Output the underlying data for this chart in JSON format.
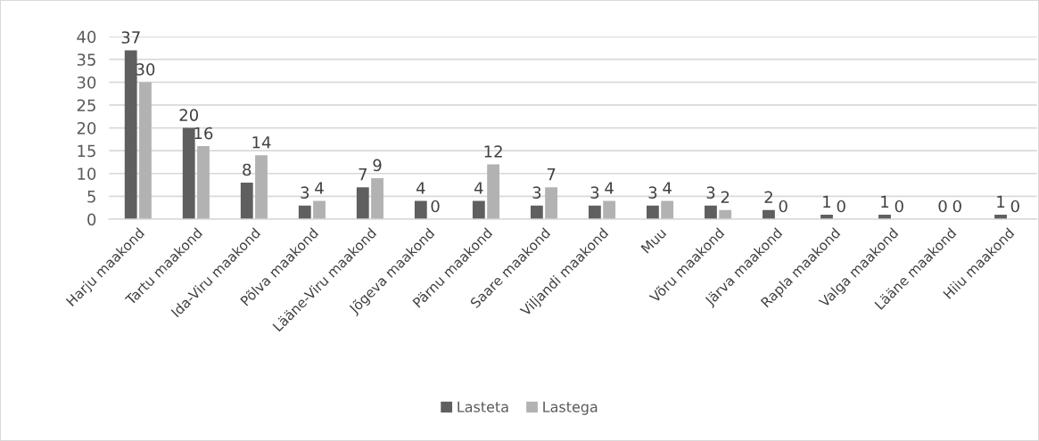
{
  "chart_data": {
    "type": "bar",
    "categories": [
      "Harju maakond",
      "Tartu maakond",
      "Ida-Viru maakond",
      "Põlva maakond",
      "Lääne-Viru maakond",
      "Jõgeva maakond",
      "Pärnu maakond",
      "Saare maakond",
      "Viljandi maakond",
      "Muu",
      "Võru maakond",
      "Järva maakond",
      "Rapla maakond",
      "Valga maakond",
      "Lääne maakond",
      "Hiiu maakond"
    ],
    "series": [
      {
        "name": "Lasteta",
        "color": "#5f5f5f",
        "values": [
          37,
          20,
          8,
          3,
          7,
          4,
          4,
          3,
          3,
          3,
          3,
          2,
          1,
          1,
          0,
          1
        ]
      },
      {
        "name": "Lastega",
        "color": "#b2b2b2",
        "values": [
          30,
          16,
          14,
          4,
          9,
          0,
          12,
          7,
          4,
          4,
          2,
          0,
          0,
          0,
          0,
          0
        ]
      }
    ],
    "ylim": [
      0,
      40
    ],
    "yticks": [
      0,
      5,
      10,
      15,
      20,
      25,
      30,
      35,
      40
    ],
    "grid": "y",
    "legend": "bottom",
    "data_labels": true
  }
}
